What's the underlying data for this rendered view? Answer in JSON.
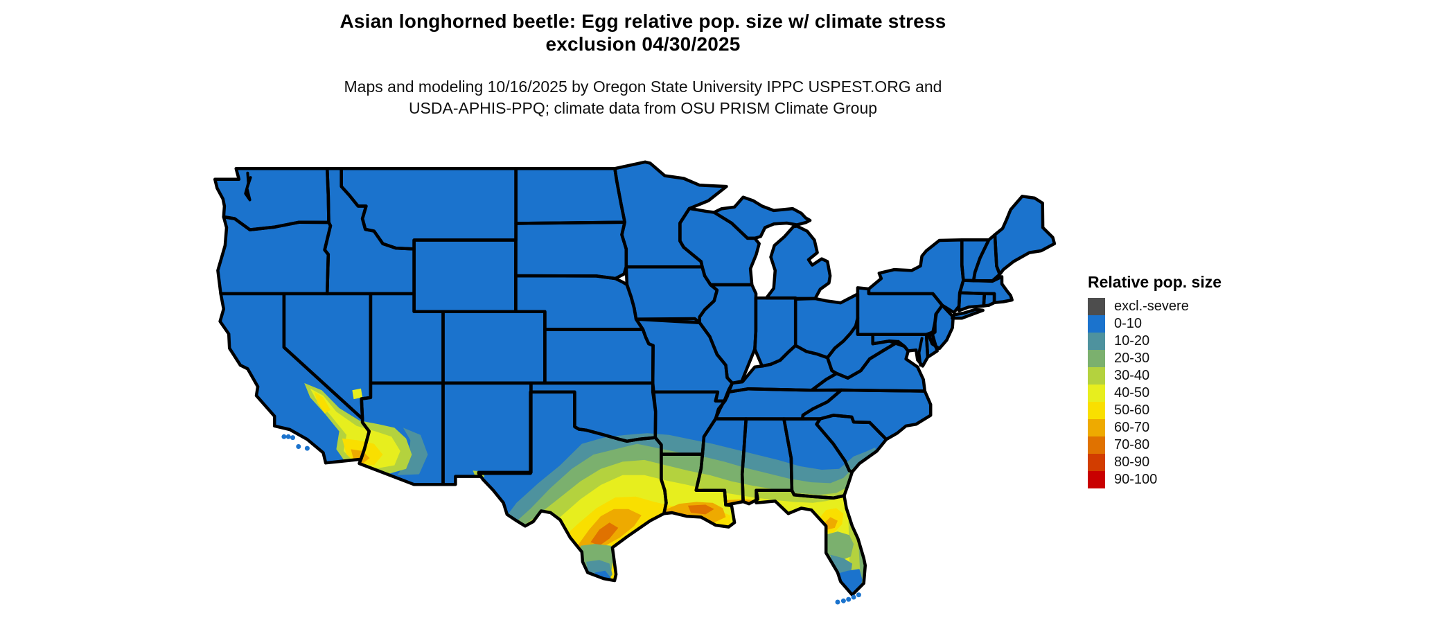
{
  "header": {
    "title_line1": "Asian longhorned beetle: Egg relative pop. size w/ climate stress",
    "title_line2": "exclusion 04/30/2025",
    "subtitle_line1": "Maps and modeling 10/16/2025 by Oregon State University IPPC USPEST.ORG and",
    "subtitle_line2": "USDA-APHIS-PPQ; climate data from OSU PRISM Climate Group"
  },
  "legend": {
    "title": "Relative pop. size",
    "items": [
      {
        "key": "excl",
        "label": "excl.-severe",
        "color": "#4d4d4d"
      },
      {
        "key": "b0",
        "label": "0-10",
        "color": "#1b73cd"
      },
      {
        "key": "b10",
        "label": "10-20",
        "color": "#4e929e"
      },
      {
        "key": "b20",
        "label": "20-30",
        "color": "#7bb06e"
      },
      {
        "key": "b30",
        "label": "30-40",
        "color": "#b4d23e"
      },
      {
        "key": "b40",
        "label": "40-50",
        "color": "#e7ee1e"
      },
      {
        "key": "b50",
        "label": "50-60",
        "color": "#f9df00"
      },
      {
        "key": "b60",
        "label": "60-70",
        "color": "#eeaa00"
      },
      {
        "key": "b70",
        "label": "70-80",
        "color": "#e07200"
      },
      {
        "key": "b80",
        "label": "80-90",
        "color": "#d23d00"
      },
      {
        "key": "b90",
        "label": "90-100",
        "color": "#c90000"
      }
    ]
  },
  "map": {
    "base_fill_key": "b0",
    "border_color": "#000000",
    "background": "#ffffff"
  }
}
